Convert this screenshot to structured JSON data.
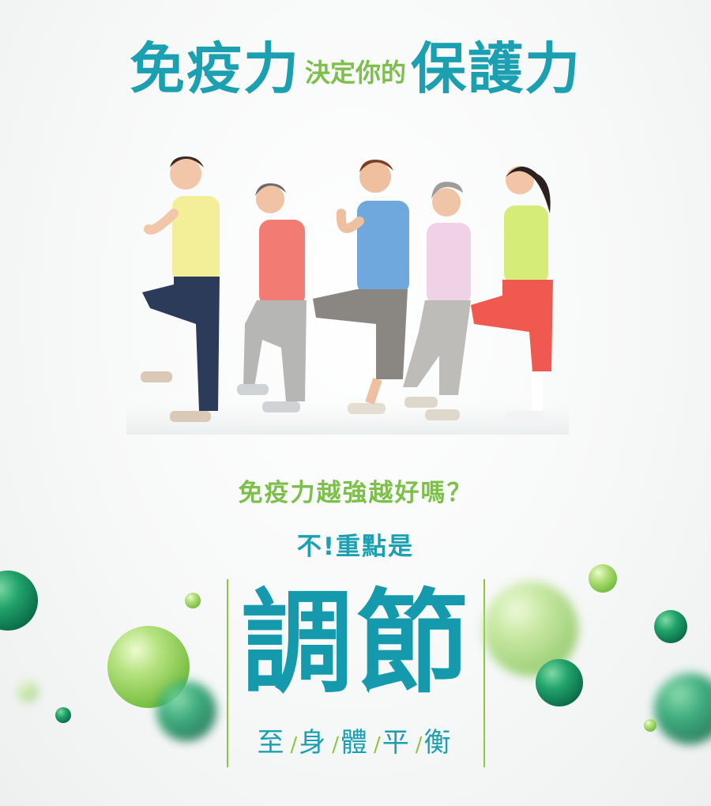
{
  "headline": {
    "part1": "免疫力",
    "part2": "決定你的",
    "part3": "保護力"
  },
  "question": "免疫力越強越好嗎？",
  "answer": "不!重點是",
  "key_word": "調節",
  "tagline": {
    "words": [
      "至",
      "身",
      "體",
      "平",
      "衡"
    ],
    "separator": "/"
  },
  "colors": {
    "teal": "#1aa0b0",
    "green": "#7cbf4a",
    "rule": "#8cc63f"
  }
}
